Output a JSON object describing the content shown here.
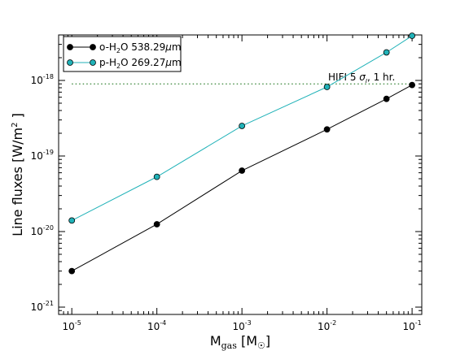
{
  "chart_data": {
    "type": "line",
    "xscale": "log",
    "yscale": "log",
    "xlabel": "M_gas [M_☉]",
    "ylabel": "Line fluxes [W/m^2 ]",
    "xlim": [
      7e-06,
      0.13
    ],
    "ylim": [
      8e-22,
      4e-18
    ],
    "x_ticks": [
      {
        "value": 1e-05,
        "mant": "10",
        "exp": "-5"
      },
      {
        "value": 0.0001,
        "mant": "10",
        "exp": "-4"
      },
      {
        "value": 0.001,
        "mant": "10",
        "exp": "-3"
      },
      {
        "value": 0.01,
        "mant": "10",
        "exp": "-2"
      },
      {
        "value": 0.1,
        "mant": "10",
        "exp": "-1"
      }
    ],
    "y_ticks": [
      {
        "value": 1e-21,
        "mant": "10",
        "exp": "-21"
      },
      {
        "value": 1e-20,
        "mant": "10",
        "exp": "-20"
      },
      {
        "value": 1e-19,
        "mant": "10",
        "exp": "-19"
      },
      {
        "value": 1e-18,
        "mant": "10",
        "exp": "-18"
      }
    ],
    "series": [
      {
        "name": "o-H2O 538.29μm",
        "color": "#000000",
        "x": [
          1e-05,
          0.0001,
          0.001,
          0.01,
          0.05,
          0.1
        ],
        "y": [
          3e-21,
          1.25e-20,
          6.4e-20,
          2.25e-19,
          5.7e-19,
          8.7e-19
        ]
      },
      {
        "name": "p-H2O 269.27μm",
        "color": "#20b2b8",
        "x": [
          1e-05,
          0.0001,
          0.001,
          0.01,
          0.05,
          0.1
        ],
        "y": [
          1.4e-20,
          5.3e-20,
          2.5e-19,
          8.2e-19,
          2.35e-18,
          3.9e-18
        ]
      }
    ],
    "legend": {
      "placement": "top-left",
      "items": [
        {
          "pre": "o-H",
          "sub": "2",
          "post": "O 538.29",
          "mu": "μ",
          "unit": "m"
        },
        {
          "pre": "p-H",
          "sub": "2",
          "post": "O 269.27",
          "mu": "μ",
          "unit": "m"
        }
      ]
    },
    "reference_line": {
      "y": 9e-19,
      "x_range": [
        1e-05,
        0.1
      ],
      "style": "dotted",
      "color": "#006400",
      "label": {
        "text": "HIFI 5 ",
        "sigma": "σ",
        "rest": ", 1 hr."
      }
    },
    "axis_labels": {
      "x": {
        "main": "M",
        "sub": "gas",
        "bracket_open": " [M",
        "sun": "☉",
        "bracket_close": "]"
      },
      "y": {
        "main": "Line fluxes [W/m",
        "sup": "2",
        "close": " ]"
      }
    }
  }
}
